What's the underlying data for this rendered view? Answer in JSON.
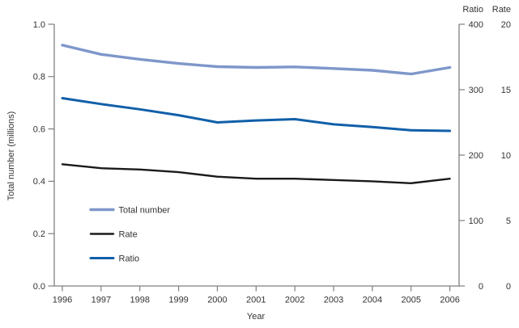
{
  "chart_data": {
    "type": "line",
    "title": "",
    "xlabel": "Year",
    "ylabel": "Total number (millions)",
    "right_axis_headers": {
      "ratio": "Ratio",
      "rate": "Rate"
    },
    "x": [
      1996,
      1997,
      1998,
      1999,
      2000,
      2001,
      2002,
      2003,
      2004,
      2005,
      2006
    ],
    "x_ticks": [
      "1996",
      "1997",
      "1998",
      "1999",
      "2000",
      "2001",
      "2002",
      "2003",
      "2004",
      "2005",
      "2006"
    ],
    "left_ticks": [
      "0.0",
      "0.2",
      "0.4",
      "0.6",
      "0.8",
      "1.0"
    ],
    "ratio_ticks": [
      "0",
      "100",
      "200",
      "300",
      "400"
    ],
    "rate_ticks": [
      "0",
      "5",
      "10",
      "15",
      "20"
    ],
    "left_ylim": [
      0,
      1.0
    ],
    "ratio_ylim": [
      0,
      400
    ],
    "rate_ylim": [
      0,
      20
    ],
    "grid": false,
    "legend_position": "inside lower-left",
    "series": [
      {
        "name": "Total number",
        "axis": "left",
        "axis_max": 1.0,
        "color": "#7E97CA",
        "stroke_width": 3.4,
        "values": [
          0.92,
          0.885,
          0.866,
          0.85,
          0.838,
          0.835,
          0.837,
          0.831,
          0.824,
          0.81,
          0.835
        ]
      },
      {
        "name": "Rate",
        "axis": "rate",
        "axis_max": 20,
        "color": "#1A1A1A",
        "stroke_width": 2.4,
        "values": [
          9.3,
          9.0,
          8.9,
          8.7,
          8.35,
          8.2,
          8.2,
          8.1,
          8.0,
          7.85,
          8.2
        ]
      },
      {
        "name": "Ratio",
        "axis": "ratio",
        "axis_max": 400,
        "color": "#105FA8",
        "stroke_width": 3.0,
        "values": [
          287,
          278,
          270,
          261,
          250,
          253,
          255,
          247,
          243,
          238,
          237
        ]
      }
    ],
    "legend": {
      "items": [
        "Total number",
        "Rate",
        "Ratio"
      ]
    }
  },
  "colors": {
    "axis_line": "#7F7F7F",
    "text": "#333333",
    "background": "#FFFFFF",
    "total_number_line": "#7E97CA",
    "rate_line": "#1A1A1A",
    "ratio_line": "#105FA8"
  }
}
